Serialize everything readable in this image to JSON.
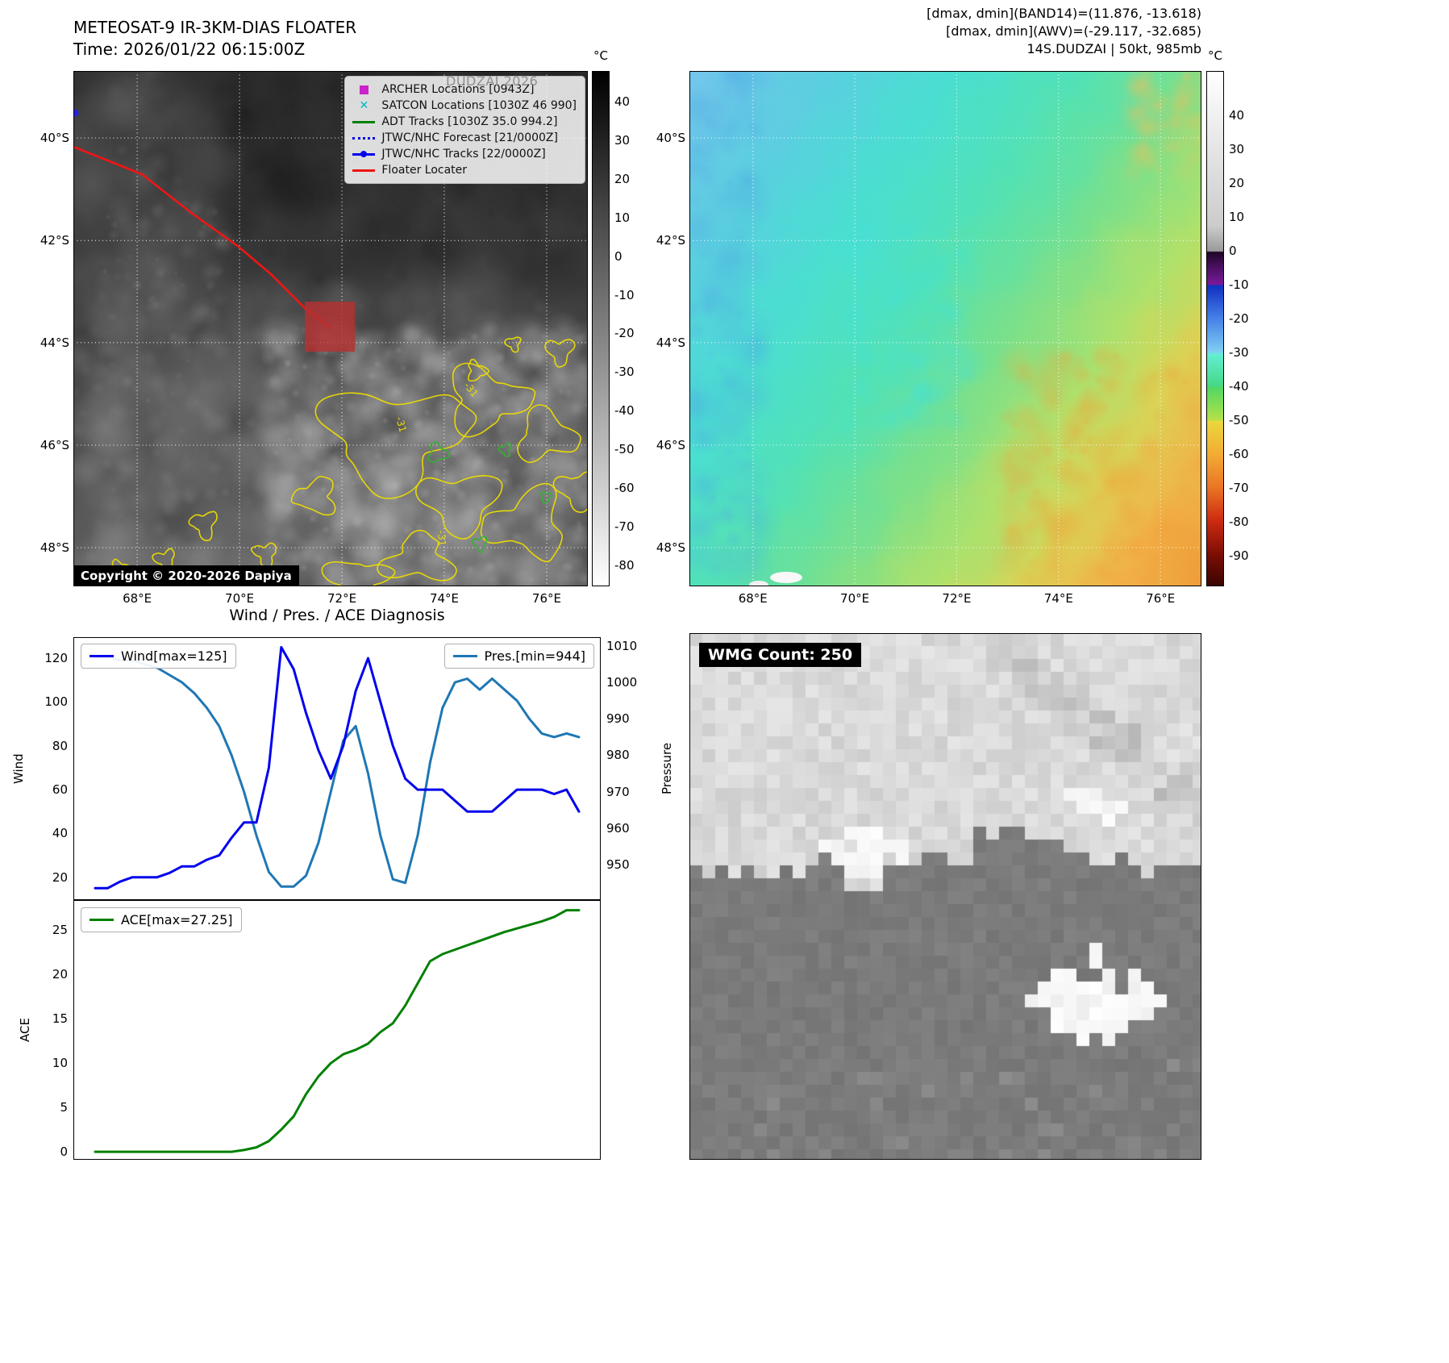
{
  "panel_ir": {
    "title": "METEOSAT-9 IR-3KM-DIAS FLOATER",
    "subtitle": "Time: 2026/01/22 06:15:00Z",
    "watermark": "DUDZAI 2026",
    "copyright": "Copyright © 2020-2026 Dapiya",
    "legend": [
      {
        "label": "ARCHER Locations [0943Z]",
        "marker": "square",
        "color": "#cc22cc"
      },
      {
        "label": "SATCON Locations [1030Z 46 990]",
        "marker": "x",
        "color": "#00b8c8"
      },
      {
        "label": "ADT Tracks [1030Z 35.0 994.2]",
        "marker": "line",
        "color": "#008000"
      },
      {
        "label": "JTWC/NHC Forecast [21/0000Z]",
        "marker": "dotted",
        "color": "#0000ee"
      },
      {
        "label": "JTWC/NHC Tracks [22/0000Z]",
        "marker": "line-dot",
        "color": "#0000ee"
      },
      {
        "label": "Floater Locater",
        "marker": "line",
        "color": "#ee1111"
      }
    ],
    "lat_labels": [
      "40°S",
      "42°S",
      "44°S",
      "46°S",
      "48°S"
    ],
    "lon_labels": [
      "68°E",
      "70°E",
      "72°E",
      "74°E",
      "76°E"
    ],
    "colorbar": {
      "unit": "°C",
      "ticks": [
        40,
        30,
        20,
        10,
        0,
        -10,
        -20,
        -30,
        -40,
        -50,
        -60,
        -70,
        -80
      ],
      "domain": [
        48,
        -85.5
      ]
    },
    "contour_labels": [
      "-31",
      "-31",
      "-31"
    ]
  },
  "panel_awv": {
    "header_lines": [
      "[dmax, dmin](BAND14)=(11.876, -13.618)",
      "[dmax, dmin](AWV)=(-29.117, -32.685)",
      "14S.DUDZAI | 50kt, 985mb"
    ],
    "lat_labels": [
      "40°S",
      "42°S",
      "44°S",
      "46°S",
      "48°S"
    ],
    "lon_labels": [
      "68°E",
      "70°E",
      "72°E",
      "74°E",
      "76°E"
    ],
    "colorbar": {
      "unit": "°C",
      "ticks": [
        40,
        30,
        20,
        10,
        0,
        -10,
        -20,
        -30,
        -40,
        -50,
        -60,
        -70,
        -80,
        -90
      ],
      "domain": [
        53,
        -99
      ]
    }
  },
  "panel_diag": {
    "title": "Wind / Pres. / ACE Diagnosis",
    "wind_axis_label": "Wind",
    "pres_axis_label": "Pressure",
    "ace_axis_label": "ACE"
  },
  "panel_wmg": {
    "label": "WMG Count: 250"
  },
  "chart_data": [
    {
      "type": "line",
      "title": "Wind / Pres. / ACE Diagnosis",
      "series": [
        {
          "name": "Wind[max=125]",
          "axis": "wind",
          "color": "#0000ee",
          "values": [
            15,
            15,
            18,
            20,
            20,
            20,
            22,
            25,
            25,
            28,
            30,
            38,
            45,
            45,
            70,
            125,
            115,
            95,
            78,
            65,
            80,
            105,
            120,
            100,
            80,
            65,
            60,
            60,
            60,
            55,
            50,
            50,
            50,
            55,
            60,
            60,
            60,
            58,
            60,
            50
          ]
        },
        {
          "name": "Pres.[min=944]",
          "axis": "pressure",
          "color": "#1f77b4",
          "values": [
            1007,
            1007,
            1006,
            1006,
            1005,
            1004,
            1002,
            1000,
            997,
            993,
            988,
            980,
            970,
            958,
            948,
            944,
            944,
            947,
            956,
            970,
            984,
            988,
            975,
            958,
            946,
            945,
            958,
            978,
            993,
            1000,
            1001,
            998,
            1001,
            998,
            995,
            990,
            986,
            985,
            986,
            985
          ]
        }
      ],
      "wind_ylabel": "Wind",
      "pressure_ylabel": "Pressure",
      "wind_ticks": [
        20,
        40,
        60,
        80,
        100,
        120
      ],
      "wind_ylim": [
        9.6,
        129.6
      ],
      "pressure_ticks": [
        950,
        960,
        970,
        980,
        990,
        1000,
        1010
      ],
      "pressure_ylim": [
        940.3,
        1012.4
      ],
      "legend_position": [
        "upper left",
        "upper right"
      ],
      "grid": false
    },
    {
      "type": "line",
      "series": [
        {
          "name": "ACE[max=27.25]",
          "axis": "ace",
          "color": "#008000",
          "values": [
            0,
            0,
            0,
            0,
            0,
            0,
            0,
            0,
            0,
            0,
            0,
            0,
            0.2,
            0.5,
            1.2,
            2.5,
            4,
            6.5,
            8.5,
            10,
            11,
            11.5,
            12.2,
            13.5,
            14.5,
            16.5,
            19,
            21.5,
            22.3,
            22.8,
            23.3,
            23.8,
            24.3,
            24.8,
            25.2,
            25.6,
            26,
            26.5,
            27.25,
            27.25
          ]
        }
      ],
      "ylabel": "ACE",
      "ace_ticks": [
        0,
        5,
        10,
        15,
        20,
        25
      ],
      "ace_ylim": [
        -0.9,
        28.4
      ],
      "legend_position": [
        "upper left"
      ],
      "grid": false
    }
  ]
}
